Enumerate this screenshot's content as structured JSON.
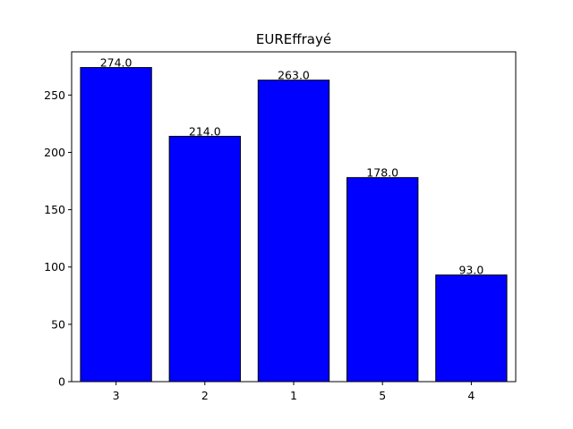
{
  "chart_data": {
    "type": "bar",
    "title": "EUREffrayé",
    "xlabel": "",
    "ylabel": "",
    "categories": [
      "3",
      "2",
      "1",
      "5",
      "4"
    ],
    "values": [
      274.0,
      214.0,
      263.0,
      178.0,
      93.0
    ],
    "value_labels": [
      "274.0",
      "214.0",
      "263.0",
      "178.0",
      "93.0"
    ],
    "ylim": [
      0,
      287.7
    ],
    "yticks": [
      0,
      50,
      100,
      150,
      200,
      250
    ],
    "grid": false,
    "legend": "none",
    "colors": {
      "bar_fill": "#0000ff",
      "bar_edge": "#000000",
      "axes": "#000000",
      "background": "#ffffff"
    }
  }
}
